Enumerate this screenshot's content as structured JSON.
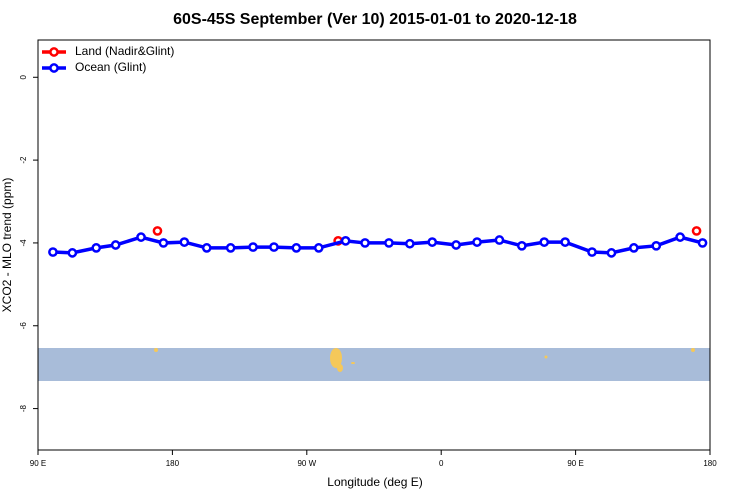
{
  "chart_data": {
    "type": "line",
    "title": "60S-45S September (Ver 10)   2015-01-01 to 2020-12-18",
    "x_label": "Longitude (deg E)",
    "y_label": "XCO2 - MLO trend (ppm)",
    "xlim": [
      90,
      540
    ],
    "ylim": [
      -9,
      0.9
    ],
    "xticks": [
      {
        "value": 90,
        "label": "90 E"
      },
      180,
      {
        "value": 270,
        "label": "90 W"
      },
      {
        "value": 360,
        "label": "0"
      },
      {
        "value": 450,
        "label": "90 E"
      },
      {
        "value": 540,
        "label": "180"
      }
    ],
    "yticks": [
      0,
      -2,
      -4,
      -6,
      -8
    ],
    "legend": "top-left",
    "series": [
      {
        "name": "Land (Nadir&Glint)",
        "color": "#ff0000",
        "connected": false,
        "x": [
          170,
          291,
          531
        ],
        "values": [
          -3.71,
          -3.95,
          -3.71
        ]
      },
      {
        "name": "Ocean (Glint)",
        "color": "#0000ff",
        "connected": true,
        "x": [
          100,
          113,
          129,
          142,
          159,
          174,
          188,
          203,
          219,
          234,
          248,
          263,
          278,
          296,
          309,
          325,
          339,
          354,
          370,
          384,
          399,
          414,
          429,
          443,
          461,
          474,
          489,
          504,
          520,
          535
        ],
        "values": [
          -4.22,
          -4.24,
          -4.12,
          -4.05,
          -3.86,
          -4.0,
          -3.98,
          -4.12,
          -4.12,
          -4.1,
          -4.1,
          -4.12,
          -4.12,
          -3.95,
          -4.0,
          -4.0,
          -4.02,
          -3.98,
          -4.05,
          -3.98,
          -3.93,
          -4.07,
          -3.98,
          -3.98,
          -4.22,
          -4.24,
          -4.12,
          -4.07,
          -3.86,
          -4.0
        ]
      }
    ]
  }
}
